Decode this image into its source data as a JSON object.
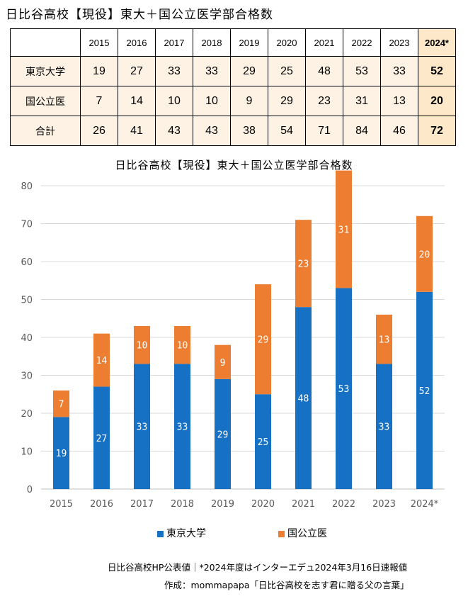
{
  "page_title": "日比谷高校【現役】東大＋国公立医学部合格数",
  "table": {
    "years": [
      "2015",
      "2016",
      "2017",
      "2018",
      "2019",
      "2020",
      "2021",
      "2022",
      "2023",
      "2024*"
    ],
    "rows": [
      {
        "label": "東京大学",
        "values": [
          "19",
          "27",
          "33",
          "33",
          "29",
          "25",
          "48",
          "53",
          "33",
          "52"
        ]
      },
      {
        "label": "国公立医",
        "values": [
          "7",
          "14",
          "10",
          "10",
          "9",
          "29",
          "23",
          "31",
          "13",
          "20"
        ]
      },
      {
        "label": "合計",
        "values": [
          "26",
          "41",
          "43",
          "43",
          "38",
          "54",
          "71",
          "84",
          "46",
          "72"
        ]
      }
    ]
  },
  "chart_data": {
    "type": "bar",
    "stacked": true,
    "title": "日比谷高校【現役】東大＋国公立医学部合格数",
    "categories": [
      "2015",
      "2016",
      "2017",
      "2018",
      "2019",
      "2020",
      "2021",
      "2022",
      "2023",
      "2024*"
    ],
    "series": [
      {
        "name": "東京大学",
        "color": "#1670c3",
        "values": [
          19,
          27,
          33,
          33,
          29,
          25,
          48,
          53,
          33,
          52
        ]
      },
      {
        "name": "国公立医",
        "color": "#ed7d31",
        "values": [
          7,
          14,
          10,
          10,
          9,
          29,
          23,
          31,
          13,
          20
        ]
      }
    ],
    "ylim": [
      0,
      80
    ],
    "yticks": [
      "0",
      "10",
      "20",
      "30",
      "40",
      "50",
      "60",
      "70",
      "80"
    ],
    "grid": true,
    "legend_position": "bottom"
  },
  "footnotes": {
    "source": "日比谷高校HP公表値｜*2024年度はインターエデュ2024年3月16日速報値",
    "author": "作成：mommapapa「日比谷高校を志す君に贈る父の言葉」"
  }
}
